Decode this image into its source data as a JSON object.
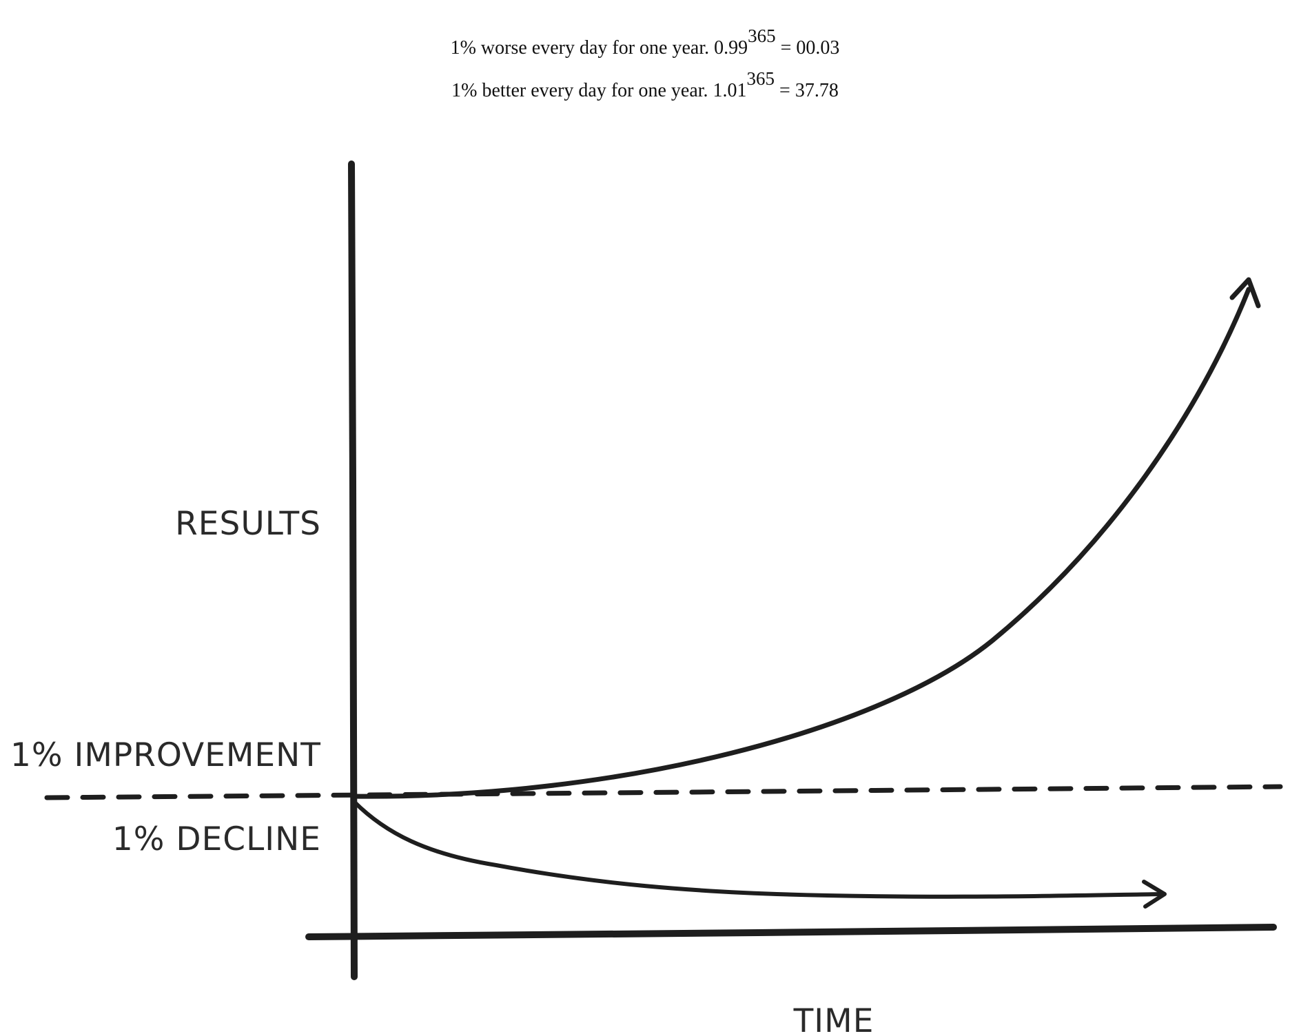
{
  "formulas": {
    "worse": {
      "text": "1% worse every day for one year. 0.99",
      "exponent": "365",
      "result": " = 00.03"
    },
    "better": {
      "text": "1% better every day for one year. 1.01",
      "exponent": "365",
      "result": " = 37.78"
    }
  },
  "diagram": {
    "y_axis_label": "RESULTS",
    "x_axis_label": "TIME",
    "baseline_upper_label": "1% IMPROVEMENT",
    "baseline_lower_label": "1% DECLINE",
    "ink_color": "#1e1e1e"
  }
}
